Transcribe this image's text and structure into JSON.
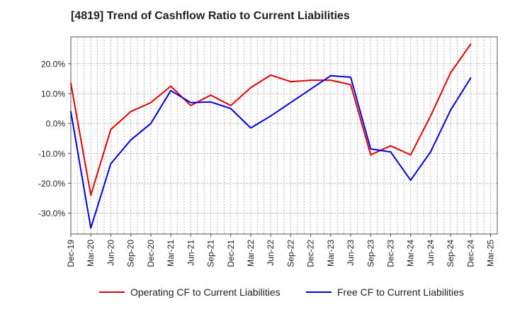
{
  "title": "[4819]  Trend of Cashflow Ratio to Current Liabilities",
  "colors": {
    "operating": "#e00000",
    "free": "#0000dd",
    "grid": "#888888",
    "axis": "#555555"
  },
  "chart_data": {
    "type": "line",
    "title": "[4819]  Trend of Cashflow Ratio to Current Liabilities",
    "xlabel": "",
    "ylabel": "",
    "x": [
      "Dec-19",
      "Jan-20",
      "Feb-20",
      "Mar-20",
      "Apr-20",
      "May-20",
      "Jun-20",
      "Jul-20",
      "Aug-20",
      "Sep-20",
      "Oct-20",
      "Nov-20",
      "Dec-20",
      "Jan-21",
      "Feb-21",
      "Mar-21",
      "Apr-21",
      "May-21",
      "Jun-21",
      "Jul-21",
      "Aug-21",
      "Sep-21",
      "Oct-21",
      "Nov-21",
      "Dec-21",
      "Jan-22",
      "Feb-22",
      "Mar-22",
      "Apr-22",
      "May-22",
      "Jun-22",
      "Jul-22",
      "Aug-22",
      "Sep-22",
      "Oct-22",
      "Nov-22",
      "Dec-22",
      "Jan-23",
      "Feb-23",
      "Mar-23",
      "Apr-23",
      "May-23",
      "Jun-23",
      "Jul-23",
      "Aug-23",
      "Sep-23",
      "Oct-23",
      "Nov-23",
      "Dec-23",
      "Jan-24",
      "Feb-24",
      "Mar-24",
      "Apr-24",
      "May-24",
      "Jun-24",
      "Jul-24",
      "Aug-24",
      "Sep-24",
      "Oct-24",
      "Nov-24",
      "Dec-24",
      "Jan-25",
      "Feb-25",
      "Mar-25"
    ],
    "x_tick_labels": [
      "Dec-19",
      "Mar-20",
      "Jun-20",
      "Sep-20",
      "Dec-20",
      "Mar-21",
      "Jun-21",
      "Sep-21",
      "Dec-21",
      "Mar-22",
      "Jun-22",
      "Sep-22",
      "Dec-22",
      "Mar-23",
      "Jun-23",
      "Sep-23",
      "Dec-23",
      "Mar-24",
      "Jun-24",
      "Sep-24",
      "Dec-24",
      "Mar-25"
    ],
    "y_tick_labels": [
      "-30.0%",
      "-20.0%",
      "-10.0%",
      "0.0%",
      "10.0%",
      "20.0%"
    ],
    "y_ticks": [
      -30,
      -20,
      -10,
      0,
      10,
      20
    ],
    "ylim": [
      -37,
      29
    ],
    "grid": true,
    "legend_position": "bottom",
    "series": [
      {
        "name": "Operating CF to Current Liabilities",
        "color": "#e00000",
        "points": [
          [
            "Dec-19",
            13.5
          ],
          [
            "Mar-20",
            -24
          ],
          [
            "Jun-20",
            -2
          ],
          [
            "Sep-20",
            4
          ],
          [
            "Dec-20",
            7
          ],
          [
            "Mar-21",
            12.5
          ],
          [
            "Jun-21",
            6
          ],
          [
            "Sep-21",
            9.5
          ],
          [
            "Dec-21",
            6
          ],
          [
            "Mar-22",
            12
          ],
          [
            "Jun-22",
            16.2
          ],
          [
            "Sep-22",
            14
          ],
          [
            "Dec-22",
            14.5
          ],
          [
            "Mar-23",
            14.5
          ],
          [
            "Jun-23",
            13
          ],
          [
            "Sep-23",
            -10.5
          ],
          [
            "Dec-23",
            -7.5
          ],
          [
            "Mar-24",
            -10.5
          ],
          [
            "Jun-24",
            2.5
          ],
          [
            "Sep-24",
            17
          ],
          [
            "Dec-24",
            26.5
          ]
        ]
      },
      {
        "name": "Free CF to Current Liabilities",
        "color": "#0000dd",
        "points": [
          [
            "Dec-19",
            4
          ],
          [
            "Mar-20",
            -35
          ],
          [
            "Jun-20",
            -13.5
          ],
          [
            "Sep-20",
            -5.5
          ],
          [
            "Dec-20",
            0
          ],
          [
            "Mar-21",
            11
          ],
          [
            "Jun-21",
            7
          ],
          [
            "Sep-21",
            7.2
          ],
          [
            "Dec-21",
            5
          ],
          [
            "Mar-22",
            -1.5
          ],
          [
            "Jun-22",
            2.5
          ],
          [
            "Sep-22",
            7
          ],
          [
            "Dec-22",
            11.5
          ],
          [
            "Mar-23",
            16
          ],
          [
            "Jun-23",
            15.5
          ],
          [
            "Sep-23",
            -8.5
          ],
          [
            "Dec-23",
            -9.5
          ],
          [
            "Mar-24",
            -19
          ],
          [
            "Jun-24",
            -9.5
          ],
          [
            "Sep-24",
            4.5
          ],
          [
            "Dec-24",
            15.2
          ]
        ]
      }
    ]
  },
  "legend": {
    "operating_label": "Operating CF to Current Liabilities",
    "free_label": "Free CF to Current Liabilities"
  }
}
